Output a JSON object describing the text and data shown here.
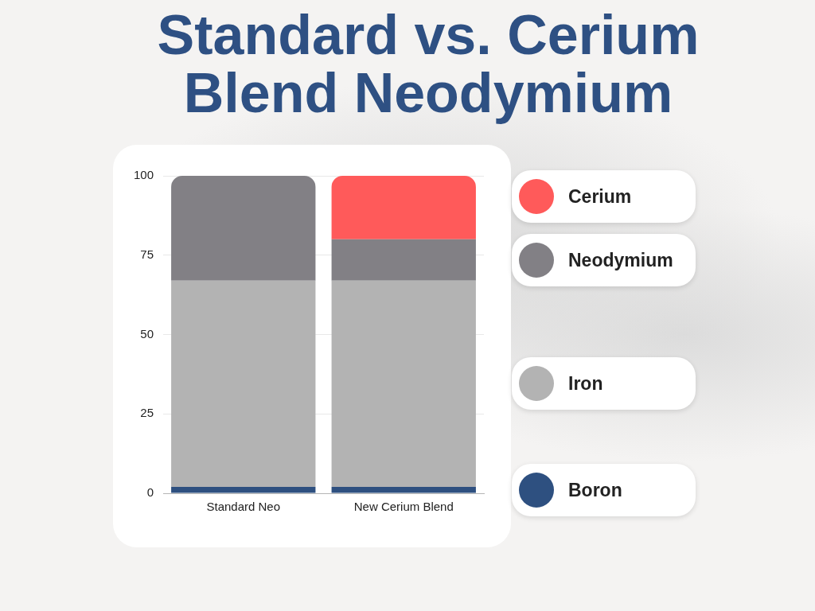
{
  "chart_data": {
    "type": "bar",
    "title": "Standard vs. Cerium Blend Neodymium",
    "categories": [
      "Standard Neo",
      "New Cerium Blend"
    ],
    "series": [
      {
        "name": "Boron",
        "color": "#2e5080",
        "values": [
          2,
          2
        ]
      },
      {
        "name": "Iron",
        "color": "#b3b3b3",
        "values": [
          65,
          65
        ]
      },
      {
        "name": "Neodymium",
        "color": "#828085",
        "values": [
          33,
          13
        ]
      },
      {
        "name": "Cerium",
        "color": "#ff5a5a",
        "values": [
          0,
          20
        ]
      }
    ],
    "stacked": true,
    "ylim": [
      0,
      100
    ],
    "yticks": [
      0,
      25,
      50,
      75,
      100
    ],
    "grid": "y",
    "legend": "right"
  }
}
